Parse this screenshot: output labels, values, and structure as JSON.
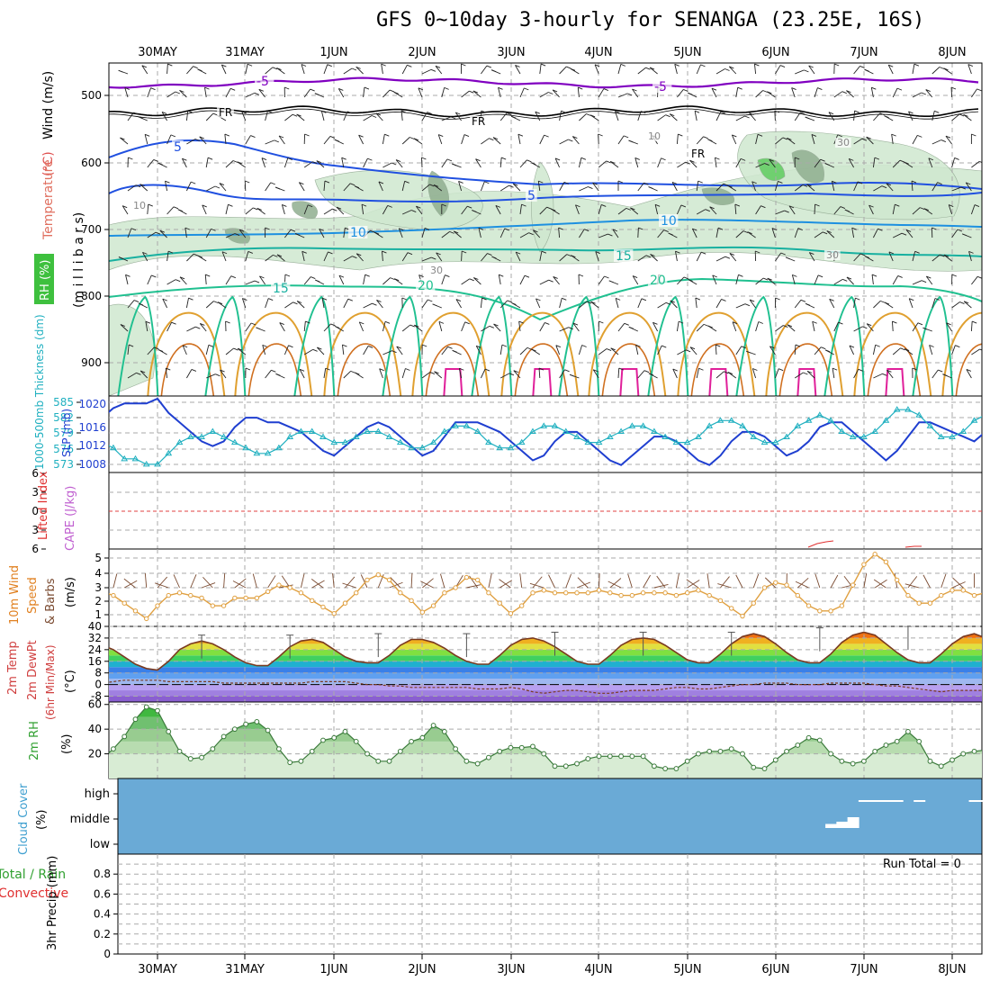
{
  "title": "GFS 0~10day 3-hourly for SENANGA (23.25E, 16S)",
  "dates": [
    "30MAY",
    "31MAY",
    "1JUN",
    "2JUN",
    "3JUN",
    "4JUN",
    "5JUN",
    "6JUN",
    "7JUN",
    "8JUN"
  ],
  "panels": {
    "upper": {
      "labels": [
        {
          "text": "Wind (m/s)",
          "color": "#000000"
        },
        {
          "text": "Temperature",
          "color": "#e05050"
        },
        {
          "text": "(°C)",
          "color": "#e05050"
        },
        {
          "text": "(m i l l i b a r s)",
          "color": "#000000"
        },
        {
          "text": "RH (%)",
          "color": "#ffffff"
        }
      ],
      "yticks": [
        "500",
        "600",
        "700",
        "800",
        "900"
      ],
      "contour_labels": [
        "-5",
        "-5",
        "FR",
        "FR",
        "FR",
        "5",
        "5",
        "10",
        "10",
        "10",
        "15",
        "15",
        "20",
        "20",
        "30",
        "30",
        "30",
        "10"
      ]
    },
    "pressure": {
      "label_thickness": "1000-500mb Thickness (dm)",
      "label_slp": "SLP (mb)",
      "left_ticks": [
        "585",
        "582",
        "579",
        "576",
        "573"
      ],
      "right_ticks": [
        "1020",
        "1016",
        "1012",
        "1008"
      ]
    },
    "stability": {
      "label_li": "Lifted Index",
      "label_cape": "CAPE (J/kg)",
      "ticks": [
        "6",
        "3",
        "0",
        "3",
        "6"
      ]
    },
    "wind10": {
      "label": "10m Wind Speed & Barbs (m/s)",
      "ticks": [
        "5",
        "4",
        "3",
        "2",
        "1"
      ]
    },
    "temp2m": {
      "label": "2m Temp 2m DewPt (6hr Min/Max) (°C)",
      "ticks": [
        "40",
        "32",
        "24",
        "16",
        "8",
        "0",
        "-8"
      ]
    },
    "rh2m": {
      "label": "2m RH (%)",
      "ticks": [
        "60",
        "40",
        "20"
      ]
    },
    "cloud": {
      "label": "Cloud Cover (%)",
      "ticks": [
        "high",
        "middle",
        "low"
      ]
    },
    "precip": {
      "label_a": "Total / Rain",
      "label_b": "Convective",
      "label_c": "3hr Precip (mm)",
      "ticks": [
        "0.8",
        "0.6",
        "0.4",
        "0.2",
        "0"
      ],
      "run_total": "Run Total = 0"
    }
  },
  "colors": {
    "rh_fill": "#cfe8cf",
    "rh_fill_dark": "#8fae8f",
    "rh_fill_green": "#5ecb5e",
    "temp_minus5": "#8000c0",
    "freezing": "#000000",
    "temp_5": "#2050e0",
    "temp_10": "#1e90e0",
    "temp_15": "#18b0a0",
    "temp_20": "#20c090",
    "temp_25": "#e0a030",
    "temp_30": "#d07020",
    "temp_35": "#e0209a",
    "slp": "#1f3fd0",
    "thickness": "#20b0c0",
    "wind10": "#e0a040",
    "barb": "#7a4a30",
    "cloud_bg": "#6aaad6",
    "rh2m": "#6cbf6c"
  },
  "chart_data": {
    "type": "line",
    "x_start": "29MAY 18Z",
    "x_step_hours": 3,
    "slp_mb": [
      1015,
      1017,
      1019,
      1020,
      1020,
      1020,
      1021,
      1018,
      1016,
      1014,
      1012,
      1011,
      1012,
      1015,
      1017,
      1017,
      1016,
      1016,
      1015,
      1014,
      1012,
      1010,
      1009,
      1011,
      1013,
      1015,
      1016,
      1015,
      1013,
      1011,
      1009,
      1010,
      1013,
      1016,
      1016,
      1016,
      1015,
      1014,
      1012,
      1010,
      1008,
      1009,
      1012,
      1014,
      1014,
      1012,
      1010,
      1008,
      1007,
      1009,
      1011,
      1013,
      1013,
      1012,
      1010,
      1008,
      1007,
      1009,
      1012,
      1014,
      1014,
      1013,
      1011,
      1009,
      1010,
      1012,
      1015,
      1016,
      1016,
      1014,
      1012,
      1010,
      1008,
      1010,
      1013,
      1016,
      1016,
      1015,
      1014,
      1013,
      1012,
      1014,
      1016,
      1018,
      1019
    ],
    "thickness_dm": [
      576,
      577,
      576,
      574,
      574,
      573,
      573,
      575,
      577,
      578,
      578,
      579,
      578,
      577,
      576,
      575,
      575,
      576,
      578,
      579,
      579,
      578,
      577,
      577,
      578,
      579,
      579,
      578,
      577,
      576,
      576,
      577,
      579,
      580,
      580,
      579,
      577,
      576,
      576,
      577,
      579,
      580,
      580,
      579,
      578,
      577,
      577,
      578,
      579,
      580,
      580,
      579,
      578,
      577,
      577,
      578,
      580,
      581,
      581,
      580,
      578,
      577,
      577,
      578,
      580,
      581,
      582,
      581,
      579,
      578,
      578,
      579,
      581,
      583,
      583,
      582,
      580,
      578,
      578,
      579,
      581,
      582,
      581,
      578,
      576
    ],
    "wind10_ms": [
      2.6,
      2.7,
      2.4,
      1.8,
      1.2,
      0.6,
      1.6,
      2.4,
      2.6,
      2.4,
      2.2,
      1.6,
      1.6,
      2.2,
      2.2,
      2.2,
      2.7,
      3.2,
      3.0,
      2.6,
      2.0,
      1.5,
      1.0,
      1.8,
      2.6,
      3.6,
      4.0,
      3.6,
      2.6,
      2.0,
      1.1,
      1.6,
      2.6,
      3.0,
      3.8,
      3.6,
      2.6,
      1.8,
      1.0,
      1.6,
      2.6,
      2.8,
      2.6,
      2.6,
      2.6,
      2.6,
      2.8,
      2.6,
      2.4,
      2.4,
      2.6,
      2.6,
      2.6,
      2.4,
      2.6,
      2.8,
      2.4,
      2.0,
      1.4,
      0.8,
      1.8,
      3.0,
      3.4,
      3.2,
      2.4,
      1.6,
      1.2,
      1.2,
      1.6,
      3.2,
      4.8,
      5.6,
      5.0,
      3.6,
      2.4,
      1.8,
      1.8,
      2.4,
      2.8,
      2.8,
      2.4,
      2.6,
      3.2,
      3.2,
      3.0
    ],
    "temp2m_c": [
      28,
      27,
      24,
      19,
      14,
      11,
      10,
      16,
      24,
      28,
      30,
      28,
      24,
      19,
      15,
      13,
      13,
      19,
      26,
      30,
      31,
      29,
      24,
      19,
      16,
      15,
      15,
      20,
      27,
      31,
      31,
      29,
      25,
      20,
      16,
      14,
      14,
      20,
      27,
      31,
      32,
      30,
      26,
      21,
      16,
      14,
      14,
      20,
      27,
      31,
      32,
      31,
      27,
      22,
      17,
      15,
      15,
      21,
      28,
      33,
      35,
      33,
      28,
      22,
      17,
      15,
      15,
      21,
      29,
      34,
      36,
      34,
      28,
      22,
      17,
      15,
      15,
      21,
      28,
      33,
      35,
      32,
      26,
      20,
      16
    ],
    "dewpt2m_c": [
      1,
      1,
      2,
      3,
      3,
      3,
      3,
      2,
      2,
      2,
      2,
      2,
      1,
      1,
      1,
      1,
      1,
      1,
      1,
      1,
      2,
      2,
      2,
      2,
      1,
      0,
      0,
      -1,
      -1,
      -2,
      -2,
      -2,
      -2,
      -2,
      -2,
      -3,
      -3,
      -3,
      -2,
      -3,
      -5,
      -6,
      -5,
      -4,
      -4,
      -5,
      -6,
      -6,
      -5,
      -4,
      -4,
      -4,
      -3,
      -2,
      -2,
      -3,
      -3,
      -2,
      -1,
      0,
      0,
      1,
      1,
      1,
      0,
      0,
      0,
      1,
      1,
      1,
      1,
      0,
      -1,
      -1,
      -2,
      -3,
      -4,
      -5,
      -4,
      -4,
      -4,
      -4,
      -4,
      -3,
      -3
    ],
    "rh2m_pct": [
      15,
      16,
      24,
      34,
      48,
      58,
      55,
      38,
      22,
      16,
      17,
      24,
      34,
      40,
      44,
      46,
      39,
      24,
      13,
      14,
      22,
      31,
      33,
      38,
      30,
      20,
      14,
      14,
      22,
      30,
      33,
      43,
      38,
      24,
      14,
      12,
      17,
      22,
      25,
      25,
      26,
      20,
      10,
      10,
      12,
      16,
      18,
      18,
      18,
      18,
      18,
      10,
      8,
      8,
      14,
      20,
      22,
      22,
      24,
      20,
      9,
      8,
      15,
      22,
      27,
      33,
      31,
      20,
      14,
      12,
      14,
      22,
      27,
      30,
      38,
      30,
      14,
      10,
      15,
      20,
      22,
      23,
      24,
      26,
      24
    ],
    "cloud_high_pct": [
      10,
      0,
      0,
      0,
      0,
      0,
      0,
      0,
      0,
      0,
      0,
      0,
      0,
      0,
      0,
      0,
      0,
      0,
      0,
      0,
      0,
      0,
      0,
      0,
      0,
      0,
      0,
      0,
      0,
      0,
      0,
      0,
      0,
      0,
      0,
      0,
      0,
      0,
      0,
      0,
      0,
      0,
      0,
      0,
      0,
      0,
      0,
      0,
      0,
      0,
      0,
      0,
      0,
      0,
      0,
      0,
      0,
      0,
      0,
      0,
      0,
      0,
      0,
      0,
      0,
      0,
      0,
      0,
      0,
      0,
      5,
      5,
      5,
      5,
      0,
      5,
      0,
      0,
      0,
      0,
      5,
      5,
      0,
      5,
      5
    ],
    "cloud_mid_pct": [
      0,
      0,
      0,
      0,
      0,
      0,
      0,
      0,
      0,
      0,
      0,
      0,
      0,
      0,
      0,
      0,
      0,
      0,
      0,
      0,
      0,
      0,
      0,
      0,
      0,
      0,
      0,
      0,
      0,
      0,
      0,
      0,
      0,
      0,
      0,
      0,
      0,
      0,
      0,
      0,
      0,
      0,
      0,
      0,
      0,
      0,
      0,
      0,
      0,
      0,
      0,
      0,
      0,
      0,
      0,
      0,
      0,
      0,
      0,
      0,
      0,
      0,
      0,
      0,
      0,
      0,
      0,
      5,
      10,
      20,
      0,
      0,
      0,
      0,
      0,
      0,
      0,
      0,
      0,
      0,
      0,
      0,
      0,
      0,
      0
    ],
    "precip_mm": [
      0
    ],
    "lifted_index_note": "mostly off-scale (>6)",
    "ylim_slp": [
      1006,
      1021
    ],
    "ylim_thickness": [
      572,
      585
    ],
    "ylim_wind10": [
      0,
      6
    ],
    "ylim_temp": [
      -12,
      40
    ],
    "ylim_rh2m": [
      0,
      62
    ],
    "ylim_precip": [
      0,
      1
    ]
  }
}
